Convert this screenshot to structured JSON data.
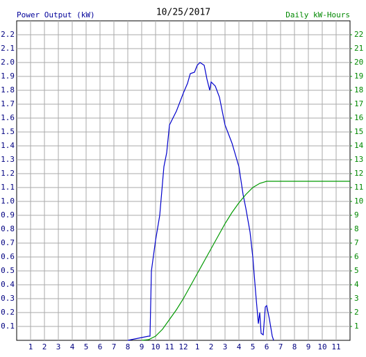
{
  "chart_data": {
    "type": "line",
    "title": "10/25/2017",
    "y_label": "Power Output (kW)",
    "y2_label": "Daily kW-Hours",
    "xlim": [
      0,
      24
    ],
    "xticks": [
      1,
      2,
      3,
      4,
      5,
      6,
      7,
      8,
      9,
      10,
      11,
      12,
      {
        "value": 13,
        "label": "1"
      },
      {
        "value": 14,
        "label": "2"
      },
      {
        "value": 15,
        "label": "3"
      },
      {
        "value": 16,
        "label": "4"
      },
      {
        "value": 17,
        "label": "5"
      },
      {
        "value": 18,
        "label": "6"
      },
      {
        "value": 19,
        "label": "7"
      },
      {
        "value": 20,
        "label": "8"
      },
      {
        "value": 21,
        "label": "9"
      },
      {
        "value": 22,
        "label": "10"
      },
      {
        "value": 23,
        "label": "11"
      }
    ],
    "ylim": [
      0,
      2.3
    ],
    "yticks": [
      0.1,
      0.2,
      0.3,
      0.4,
      0.5,
      0.6,
      0.7,
      0.8,
      0.9,
      {
        "value": 1,
        "label": "1.0"
      },
      1.1,
      1.2,
      1.3,
      1.4,
      1.5,
      1.6,
      1.7,
      1.8,
      1.9,
      {
        "value": 2,
        "label": "2.0"
      },
      2.1,
      2.2
    ],
    "y2lim": [
      0,
      23
    ],
    "y2ticks": [
      1,
      2,
      3,
      4,
      5,
      6,
      7,
      8,
      9,
      10,
      11,
      12,
      13,
      14,
      15,
      16,
      17,
      18,
      19,
      20,
      21,
      22
    ],
    "grid": true,
    "series": [
      {
        "name": "Power Output",
        "color": "#0000cc",
        "x": [
          8.0,
          9.0,
          9.5,
          9.6,
          9.7,
          10.0,
          10.3,
          10.6,
          10.8,
          11.0,
          11.5,
          12.0,
          12.3,
          12.5,
          12.8,
          13.0,
          13.2,
          13.5,
          13.7,
          13.9,
          14.0,
          14.3,
          14.6,
          14.8,
          15.0,
          15.5,
          16.0,
          16.3,
          16.5,
          16.8,
          17.0,
          17.2,
          17.4,
          17.5,
          17.6,
          17.75,
          17.9,
          18.0,
          18.2,
          18.4,
          18.5
        ],
        "values": [
          0.0,
          0.02,
          0.03,
          0.03,
          0.5,
          0.72,
          0.9,
          1.25,
          1.35,
          1.55,
          1.65,
          1.78,
          1.85,
          1.92,
          1.93,
          1.98,
          2.0,
          1.98,
          1.88,
          1.8,
          1.86,
          1.83,
          1.75,
          1.65,
          1.55,
          1.42,
          1.25,
          1.05,
          0.95,
          0.78,
          0.6,
          0.35,
          0.12,
          0.2,
          0.05,
          0.04,
          0.24,
          0.25,
          0.15,
          0.03,
          0.0
        ]
      },
      {
        "name": "Daily kW-Hours",
        "color": "#009900",
        "axis": "y2",
        "x": [
          9.0,
          9.5,
          10.0,
          10.5,
          11.0,
          11.5,
          12.0,
          12.5,
          13.0,
          13.5,
          14.0,
          14.5,
          15.0,
          15.5,
          16.0,
          16.5,
          17.0,
          17.5,
          18.0,
          24.0
        ],
        "values": [
          0,
          0.05,
          0.3,
          0.8,
          1.5,
          2.2,
          3.0,
          3.9,
          4.8,
          5.7,
          6.6,
          7.5,
          8.4,
          9.2,
          9.9,
          10.5,
          11.0,
          11.3,
          11.45,
          11.45
        ]
      }
    ]
  }
}
